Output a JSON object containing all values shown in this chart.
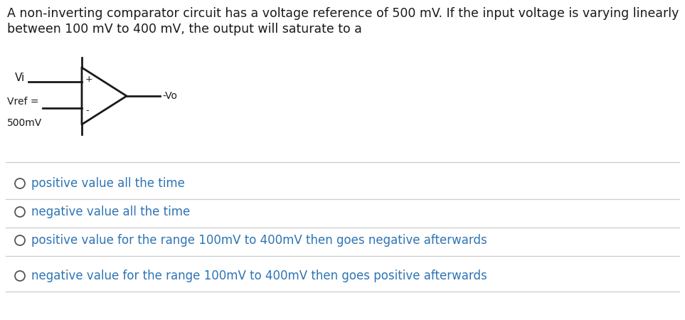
{
  "title_line1": "A non-inverting comparator circuit has a voltage reference of 500 mV. If the input voltage is varying linearly",
  "title_line2": "between 100 mV to 400 mV, the output will saturate to a",
  "title_fontsize": 12.5,
  "title_color": "#1a1a1a",
  "circuit_label_vi": "Vi",
  "circuit_label_vref": "Vref =",
  "circuit_label_500mv": "500mV",
  "circuit_label_vo": "-Vo",
  "circuit_plus": "+",
  "circuit_minus": "-",
  "options": [
    "positive value all the time",
    "negative value all the time",
    "positive value for the range 100mV to 400mV then goes negative afterwards",
    "negative value for the range 100mV to 400mV then goes positive afterwards"
  ],
  "option_color": "#2e74b5",
  "option_fontsize": 12,
  "bg_color": "#ffffff",
  "circle_color": "#555555",
  "line_color": "#1a1a1a",
  "divider_color": "#cccccc"
}
